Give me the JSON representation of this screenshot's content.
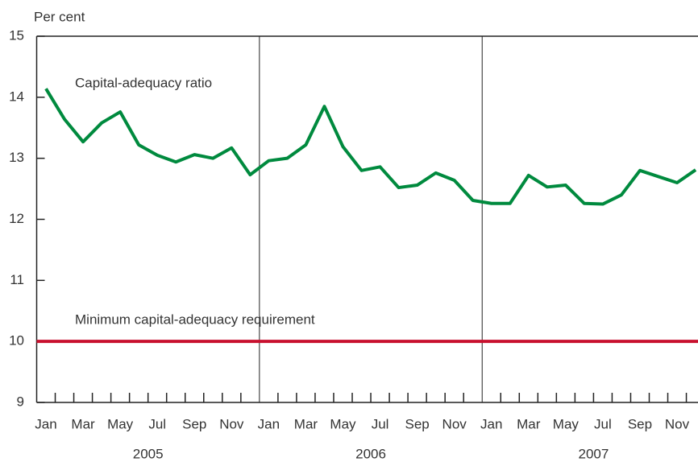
{
  "chart_data": {
    "type": "line",
    "y_label": "Per cent",
    "categories": [
      "Jan",
      null,
      "Mar",
      null,
      "May",
      null,
      "Jul",
      null,
      "Sep",
      null,
      "Nov",
      null,
      "Jan",
      null,
      "Mar",
      null,
      "May",
      null,
      "Jul",
      null,
      "Sep",
      null,
      "Nov",
      null,
      "Jan",
      null,
      "Mar",
      null,
      "May",
      null,
      "Jul",
      null,
      "Sep",
      null,
      "Nov",
      null
    ],
    "years": [
      "2005",
      "2006",
      "2007"
    ],
    "series": [
      {
        "name": "Capital-adequacy ratio",
        "color": "#008a3e",
        "values": [
          14.14,
          13.64,
          13.27,
          13.58,
          13.76,
          13.22,
          13.05,
          12.94,
          13.06,
          13.0,
          13.17,
          12.73,
          12.96,
          13.0,
          13.22,
          13.85,
          13.19,
          12.8,
          12.86,
          12.52,
          12.56,
          12.76,
          12.64,
          12.31,
          12.26,
          12.26,
          12.72,
          12.53,
          12.56,
          12.26,
          12.25,
          12.4,
          12.8,
          12.7,
          12.6,
          12.81
        ]
      }
    ],
    "reference_lines": [
      {
        "label": "Minimum capital-adequacy requirement",
        "value": 10,
        "color": "#c8102e"
      }
    ],
    "ylim": [
      9,
      15
    ],
    "yticks": [
      9,
      10,
      11,
      12,
      13,
      14,
      15
    ]
  }
}
